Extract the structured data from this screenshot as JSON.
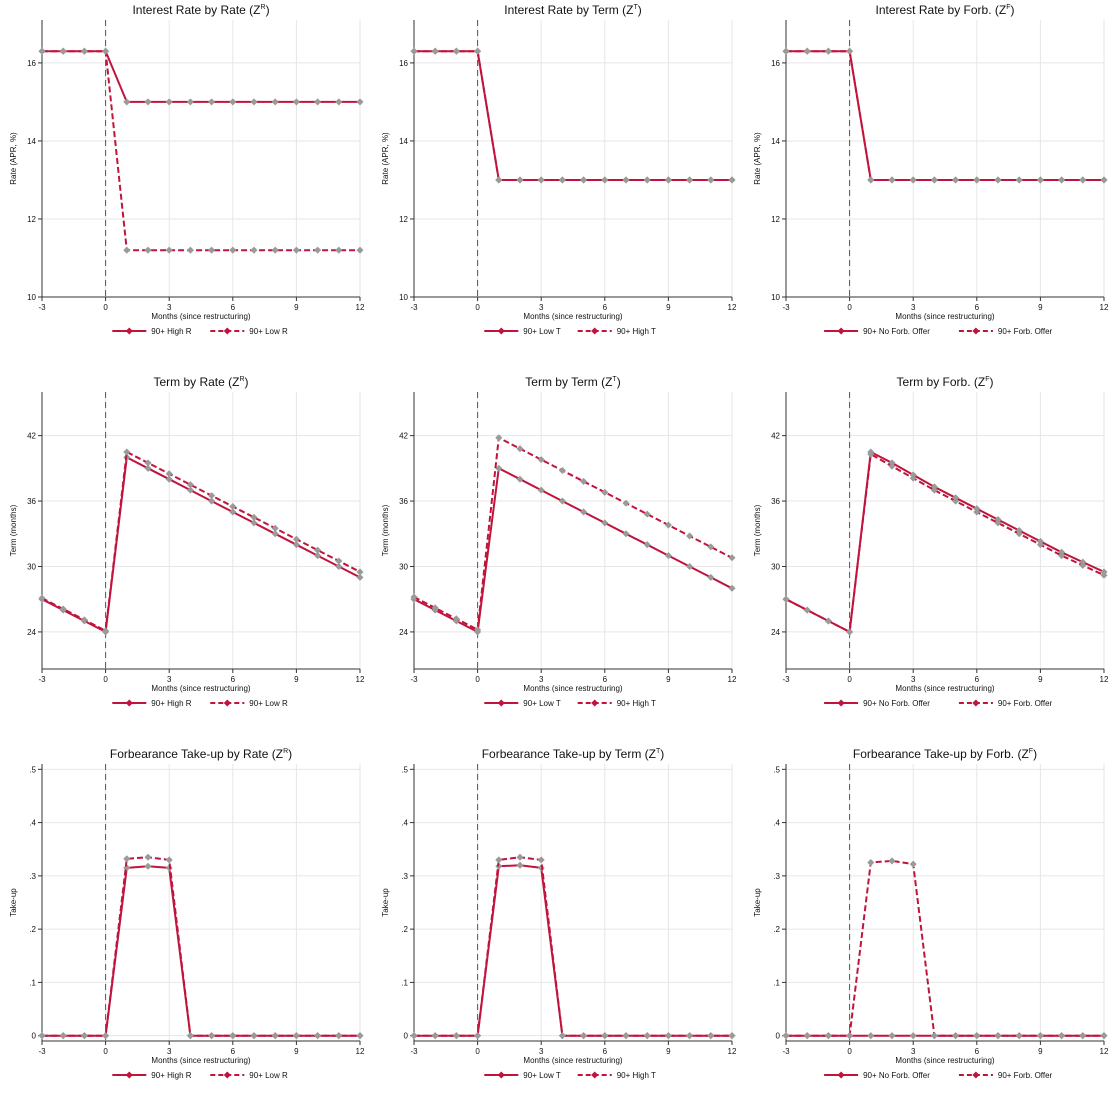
{
  "colors": {
    "series": "#c0143c",
    "markers": "#9a9a9a",
    "grid": "#e6e6e6",
    "axis": "#333333",
    "zero_line": "#555555"
  },
  "chart_data": [
    {
      "type": "line",
      "title": "Interest Rate by Rate (Z",
      "title_sup": "R",
      "title_close": ")",
      "xlabel": "Months (since restructuring)",
      "ylabel": "Rate (APR, %)",
      "xlim": [
        -3,
        12
      ],
      "ylim": [
        10,
        17.1
      ],
      "xticks": [
        -3,
        0,
        3,
        6,
        9,
        12
      ],
      "xtick_labels": [
        "-3",
        "0",
        "3",
        "6",
        "9",
        "12"
      ],
      "yticks": [
        10,
        12,
        14,
        16
      ],
      "ytick_labels": [
        "10",
        "12",
        "14",
        "16"
      ],
      "x": [
        -3,
        -2,
        -1,
        0,
        1,
        2,
        3,
        4,
        5,
        6,
        7,
        8,
        9,
        10,
        11,
        12
      ],
      "series": [
        {
          "name": "90+ High R",
          "style": "solid",
          "values": [
            16.3,
            16.3,
            16.3,
            16.3,
            15.0,
            15.0,
            15.0,
            15.0,
            15.0,
            15.0,
            15.0,
            15.0,
            15.0,
            15.0,
            15.0,
            15.0
          ]
        },
        {
          "name": "90+ Low R",
          "style": "dashed",
          "values": [
            16.3,
            16.3,
            16.3,
            16.3,
            11.2,
            11.2,
            11.2,
            11.2,
            11.2,
            11.2,
            11.2,
            11.2,
            11.2,
            11.2,
            11.2,
            11.2
          ]
        }
      ],
      "vline": 0,
      "grid": true,
      "legend": "bottom"
    },
    {
      "type": "line",
      "title": "Interest Rate by Term (Z",
      "title_sup": "T",
      "title_close": ")",
      "xlabel": "Months (since restructuring)",
      "ylabel": "Rate (APR, %)",
      "xlim": [
        -3,
        12
      ],
      "ylim": [
        10,
        17.1
      ],
      "xticks": [
        -3,
        0,
        3,
        6,
        9,
        12
      ],
      "xtick_labels": [
        "-3",
        "0",
        "3",
        "6",
        "9",
        "12"
      ],
      "yticks": [
        10,
        12,
        14,
        16
      ],
      "ytick_labels": [
        "10",
        "12",
        "14",
        "16"
      ],
      "x": [
        -3,
        -2,
        -1,
        0,
        1,
        2,
        3,
        4,
        5,
        6,
        7,
        8,
        9,
        10,
        11,
        12
      ],
      "series": [
        {
          "name": "90+ Low T",
          "style": "solid",
          "values": [
            16.3,
            16.3,
            16.3,
            16.3,
            13.0,
            13.0,
            13.0,
            13.0,
            13.0,
            13.0,
            13.0,
            13.0,
            13.0,
            13.0,
            13.0,
            13.0
          ]
        },
        {
          "name": "90+ High T",
          "style": "dashed",
          "values": [
            16.3,
            16.3,
            16.3,
            16.3,
            13.0,
            13.0,
            13.0,
            13.0,
            13.0,
            13.0,
            13.0,
            13.0,
            13.0,
            13.0,
            13.0,
            13.0
          ]
        }
      ],
      "vline": 0,
      "grid": true,
      "legend": "bottom"
    },
    {
      "type": "line",
      "title": "Interest Rate by Forb. (Z",
      "title_sup": "F",
      "title_close": ")",
      "xlabel": "Months (since restructuring)",
      "ylabel": "Rate (APR, %)",
      "xlim": [
        -3,
        12
      ],
      "ylim": [
        10,
        17.1
      ],
      "xticks": [
        -3,
        0,
        3,
        6,
        9,
        12
      ],
      "xtick_labels": [
        "-3",
        "0",
        "3",
        "6",
        "9",
        "12"
      ],
      "yticks": [
        10,
        12,
        14,
        16
      ],
      "ytick_labels": [
        "10",
        "12",
        "14",
        "16"
      ],
      "x": [
        -3,
        -2,
        -1,
        0,
        1,
        2,
        3,
        4,
        5,
        6,
        7,
        8,
        9,
        10,
        11,
        12
      ],
      "series": [
        {
          "name": "90+ No Forb. Offer",
          "style": "solid",
          "values": [
            16.3,
            16.3,
            16.3,
            16.3,
            13.0,
            13.0,
            13.0,
            13.0,
            13.0,
            13.0,
            13.0,
            13.0,
            13.0,
            13.0,
            13.0,
            13.0
          ]
        },
        {
          "name": "90+ Forb. Offer",
          "style": "dashed",
          "values": [
            16.3,
            16.3,
            16.3,
            16.3,
            13.0,
            13.0,
            13.0,
            13.0,
            13.0,
            13.0,
            13.0,
            13.0,
            13.0,
            13.0,
            13.0,
            13.0
          ]
        }
      ],
      "vline": 0,
      "grid": true,
      "legend": "bottom"
    },
    {
      "type": "line",
      "title": "Term by Rate (Z",
      "title_sup": "R",
      "title_close": ")",
      "xlabel": "Months (since restructuring)",
      "ylabel": "Term (months)",
      "xlim": [
        -3,
        12
      ],
      "ylim": [
        20.6,
        46
      ],
      "xticks": [
        -3,
        0,
        3,
        6,
        9,
        12
      ],
      "xtick_labels": [
        "-3",
        "0",
        "3",
        "6",
        "9",
        "12"
      ],
      "yticks": [
        24,
        30,
        36,
        42
      ],
      "ytick_labels": [
        "24",
        "30",
        "36",
        "42"
      ],
      "x": [
        -3,
        -2,
        -1,
        0,
        1,
        2,
        3,
        4,
        5,
        6,
        7,
        8,
        9,
        10,
        11,
        12
      ],
      "series": [
        {
          "name": "90+ High R",
          "style": "solid",
          "values": [
            27,
            26,
            25,
            24,
            40,
            39,
            38,
            37,
            36,
            35,
            34,
            33,
            32,
            31,
            30,
            29
          ]
        },
        {
          "name": "90+ Low R",
          "style": "dashed",
          "values": [
            27.1,
            26.1,
            25.1,
            24.1,
            40.5,
            39.5,
            38.5,
            37.5,
            36.5,
            35.5,
            34.5,
            33.5,
            32.5,
            31.5,
            30.5,
            29.5
          ]
        }
      ],
      "vline": 0,
      "grid": true,
      "legend": "bottom"
    },
    {
      "type": "line",
      "title": "Term by Term (Z",
      "title_sup": "T",
      "title_close": ")",
      "xlabel": "Months (since restructuring)",
      "ylabel": "Term (months)",
      "xlim": [
        -3,
        12
      ],
      "ylim": [
        20.6,
        46
      ],
      "xticks": [
        -3,
        0,
        3,
        6,
        9,
        12
      ],
      "xtick_labels": [
        "-3",
        "0",
        "3",
        "6",
        "9",
        "12"
      ],
      "yticks": [
        24,
        30,
        36,
        42
      ],
      "ytick_labels": [
        "24",
        "30",
        "36",
        "42"
      ],
      "x": [
        -3,
        -2,
        -1,
        0,
        1,
        2,
        3,
        4,
        5,
        6,
        7,
        8,
        9,
        10,
        11,
        12
      ],
      "series": [
        {
          "name": "90+ Low T",
          "style": "solid",
          "values": [
            27,
            26,
            25,
            24,
            39,
            38,
            37,
            36,
            35,
            34,
            33,
            32,
            31,
            30,
            29,
            28
          ]
        },
        {
          "name": "90+ High T",
          "style": "dashed",
          "values": [
            27.2,
            26.2,
            25.2,
            24.2,
            41.8,
            40.8,
            39.8,
            38.8,
            37.8,
            36.8,
            35.8,
            34.8,
            33.8,
            32.8,
            31.8,
            30.8
          ]
        }
      ],
      "vline": 0,
      "grid": true,
      "legend": "bottom"
    },
    {
      "type": "line",
      "title": "Term by Forb. (Z",
      "title_sup": "F",
      "title_close": ")",
      "xlabel": "Months (since restructuring)",
      "ylabel": "Term (months)",
      "xlim": [
        -3,
        12
      ],
      "ylim": [
        20.6,
        46
      ],
      "xticks": [
        -3,
        0,
        3,
        6,
        9,
        12
      ],
      "xtick_labels": [
        "-3",
        "0",
        "3",
        "6",
        "9",
        "12"
      ],
      "yticks": [
        24,
        30,
        36,
        42
      ],
      "ytick_labels": [
        "24",
        "30",
        "36",
        "42"
      ],
      "x": [
        -3,
        -2,
        -1,
        0,
        1,
        2,
        3,
        4,
        5,
        6,
        7,
        8,
        9,
        10,
        11,
        12
      ],
      "series": [
        {
          "name": "90+ No Forb. Offer",
          "style": "solid",
          "values": [
            27,
            26,
            25,
            24,
            40.5,
            39.5,
            38.4,
            37.3,
            36.3,
            35.3,
            34.3,
            33.3,
            32.3,
            31.3,
            30.4,
            29.5
          ]
        },
        {
          "name": "90+ Forb. Offer",
          "style": "dashed",
          "values": [
            27,
            26,
            25,
            24,
            40.3,
            39.2,
            38.1,
            37.0,
            36.0,
            35.0,
            34.0,
            33.0,
            32.0,
            31.0,
            30.1,
            29.2
          ]
        }
      ],
      "vline": 0,
      "grid": true,
      "legend": "bottom"
    },
    {
      "type": "line",
      "title": "Forbearance Take-up by Rate (Z",
      "title_sup": "R",
      "title_close": ")",
      "xlabel": "Months (since restructuring)",
      "ylabel": "Take-up",
      "xlim": [
        -3,
        12
      ],
      "ylim": [
        -0.01,
        0.51
      ],
      "xticks": [
        -3,
        0,
        3,
        6,
        9,
        12
      ],
      "xtick_labels": [
        "-3",
        "0",
        "3",
        "6",
        "9",
        "12"
      ],
      "yticks": [
        0,
        0.1,
        0.2,
        0.3,
        0.4,
        0.5
      ],
      "ytick_labels": [
        "0",
        ".1",
        ".2",
        ".3",
        ".4",
        ".5"
      ],
      "x": [
        -3,
        -2,
        -1,
        0,
        1,
        2,
        3,
        4,
        5,
        6,
        7,
        8,
        9,
        10,
        11,
        12
      ],
      "series": [
        {
          "name": "90+ High R",
          "style": "solid",
          "values": [
            0,
            0,
            0,
            0,
            0.315,
            0.318,
            0.315,
            0,
            0,
            0,
            0,
            0,
            0,
            0,
            0,
            0
          ]
        },
        {
          "name": "90+ Low R",
          "style": "dashed",
          "values": [
            0,
            0,
            0,
            0,
            0.332,
            0.335,
            0.33,
            0,
            0,
            0,
            0,
            0,
            0,
            0,
            0,
            0
          ]
        }
      ],
      "vline": 0,
      "grid": true,
      "legend": "bottom"
    },
    {
      "type": "line",
      "title": "Forbearance Take-up by Term (Z",
      "title_sup": "T",
      "title_close": ")",
      "xlabel": "Months (since restructuring)",
      "ylabel": "Take-up",
      "xlim": [
        -3,
        12
      ],
      "ylim": [
        -0.01,
        0.51
      ],
      "xticks": [
        -3,
        0,
        3,
        6,
        9,
        12
      ],
      "xtick_labels": [
        "-3",
        "0",
        "3",
        "6",
        "9",
        "12"
      ],
      "yticks": [
        0,
        0.1,
        0.2,
        0.3,
        0.4,
        0.5
      ],
      "ytick_labels": [
        "0",
        ".1",
        ".2",
        ".3",
        ".4",
        ".5"
      ],
      "x": [
        -3,
        -2,
        -1,
        0,
        1,
        2,
        3,
        4,
        5,
        6,
        7,
        8,
        9,
        10,
        11,
        12
      ],
      "series": [
        {
          "name": "90+ Low T",
          "style": "solid",
          "values": [
            0,
            0,
            0,
            0,
            0.318,
            0.32,
            0.315,
            0,
            0,
            0,
            0,
            0,
            0,
            0,
            0,
            0
          ]
        },
        {
          "name": "90+ High T",
          "style": "dashed",
          "values": [
            0,
            0,
            0,
            0,
            0.33,
            0.335,
            0.33,
            0,
            0,
            0,
            0,
            0,
            0,
            0,
            0,
            0
          ]
        }
      ],
      "vline": 0,
      "grid": true,
      "legend": "bottom"
    },
    {
      "type": "line",
      "title": "Forbearance Take-up by Forb. (Z",
      "title_sup": "F",
      "title_close": ")",
      "xlabel": "Months (since restructuring)",
      "ylabel": "Take-up",
      "xlim": [
        -3,
        12
      ],
      "ylim": [
        -0.01,
        0.51
      ],
      "xticks": [
        -3,
        0,
        3,
        6,
        9,
        12
      ],
      "xtick_labels": [
        "-3",
        "0",
        "3",
        "6",
        "9",
        "12"
      ],
      "yticks": [
        0,
        0.1,
        0.2,
        0.3,
        0.4,
        0.5
      ],
      "ytick_labels": [
        "0",
        ".1",
        ".2",
        ".3",
        ".4",
        ".5"
      ],
      "x": [
        -3,
        -2,
        -1,
        0,
        1,
        2,
        3,
        4,
        5,
        6,
        7,
        8,
        9,
        10,
        11,
        12
      ],
      "series": [
        {
          "name": "90+ No Forb. Offer",
          "style": "solid",
          "values": [
            0,
            0,
            0,
            0,
            0,
            0,
            0,
            0,
            0,
            0,
            0,
            0,
            0,
            0,
            0,
            0
          ]
        },
        {
          "name": "90+ Forb. Offer",
          "style": "dashed",
          "values": [
            0,
            0,
            0,
            0,
            0.325,
            0.328,
            0.322,
            0,
            0,
            0,
            0,
            0,
            0,
            0,
            0,
            0
          ]
        }
      ],
      "vline": 0,
      "grid": true,
      "legend": "bottom"
    }
  ]
}
